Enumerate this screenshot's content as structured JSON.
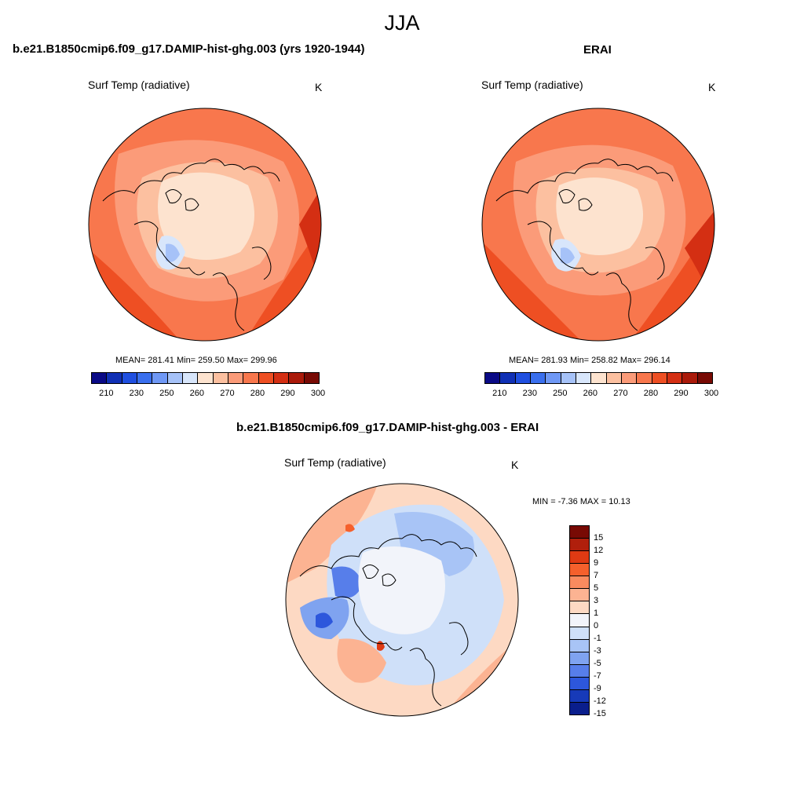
{
  "figure": {
    "title": "JJA",
    "palette_abs": [
      "#0a0a86",
      "#1030b5",
      "#1f4fe0",
      "#3a6fee",
      "#6f98f5",
      "#a6c2f8",
      "#d8e6fb",
      "#fde3cf",
      "#fcc0a0",
      "#fb9b79",
      "#f8774d",
      "#ee4f23",
      "#d42f13",
      "#aa1a0a",
      "#780a04"
    ],
    "palette_diff": [
      "#780a04",
      "#b01f0c",
      "#df3a13",
      "#f5602c",
      "#f98b5f",
      "#fcb392",
      "#fdd9c3",
      "#f2f4fa",
      "#cfe0f9",
      "#a8c4f6",
      "#7fa3f0",
      "#577eea",
      "#2d57dc",
      "#173ab8",
      "#0a1e8c"
    ]
  },
  "panels": [
    {
      "name": "model",
      "title": "b.e21.B1850cmip6.f09_g17.DAMIP-hist-ghg.003 (yrs 1920-1944)",
      "variable": "Surf Temp (radiative)",
      "units": "K",
      "stats": "MEAN= 281.41  Min= 259.50  Max= 299.96",
      "colorbar_ticks": [
        "210",
        "230",
        "250",
        "260",
        "270",
        "280",
        "290",
        "300"
      ],
      "map_icon": "polar-stereographic-arctic-map"
    },
    {
      "name": "obs",
      "title": "ERAI",
      "variable": "Surf Temp (radiative)",
      "units": "K",
      "stats": "MEAN= 281.93  Min= 258.82  Max= 296.14",
      "colorbar_ticks": [
        "210",
        "230",
        "250",
        "260",
        "270",
        "280",
        "290",
        "300"
      ],
      "map_icon": "polar-stereographic-arctic-map"
    },
    {
      "name": "diff",
      "title": "b.e21.B1850cmip6.f09_g17.DAMIP-hist-ghg.003 - ERAI",
      "variable": "Surf Temp (radiative)",
      "units": "K",
      "stats": "MIN =  -7.36 MAX =  10.13",
      "colorbar_ticks": [
        "15",
        "12",
        "9",
        "7",
        "5",
        "3",
        "1",
        "0",
        "-1",
        "-3",
        "-5",
        "-7",
        "-9",
        "-12",
        "-15"
      ],
      "map_icon": "polar-stereographic-arctic-difference-map"
    }
  ]
}
